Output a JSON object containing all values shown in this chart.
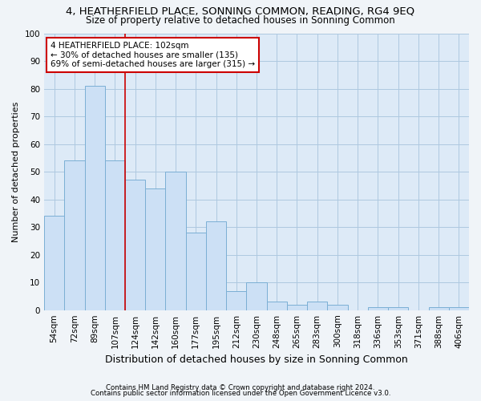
{
  "title": "4, HEATHERFIELD PLACE, SONNING COMMON, READING, RG4 9EQ",
  "subtitle": "Size of property relative to detached houses in Sonning Common",
  "xlabel": "Distribution of detached houses by size in Sonning Common",
  "ylabel": "Number of detached properties",
  "footnote1": "Contains HM Land Registry data © Crown copyright and database right 2024.",
  "footnote2": "Contains public sector information licensed under the Open Government Licence v3.0.",
  "categories": [
    "54sqm",
    "72sqm",
    "89sqm",
    "107sqm",
    "124sqm",
    "142sqm",
    "160sqm",
    "177sqm",
    "195sqm",
    "212sqm",
    "230sqm",
    "248sqm",
    "265sqm",
    "283sqm",
    "300sqm",
    "318sqm",
    "336sqm",
    "353sqm",
    "371sqm",
    "388sqm",
    "406sqm"
  ],
  "values": [
    34,
    54,
    81,
    54,
    47,
    44,
    50,
    28,
    32,
    7,
    10,
    3,
    2,
    3,
    2,
    0,
    1,
    1,
    0,
    1,
    1
  ],
  "bar_color": "#cce0f5",
  "bar_edge_color": "#7bafd4",
  "marker_line_index": 3,
  "marker_line_color": "#cc0000",
  "annotation_text": "4 HEATHERFIELD PLACE: 102sqm\n← 30% of detached houses are smaller (135)\n69% of semi-detached houses are larger (315) →",
  "annotation_box_color": "#ffffff",
  "annotation_box_edge": "#cc0000",
  "ylim": [
    0,
    100
  ],
  "grid_color": "#aec8e0",
  "background_color": "#ddeaf7",
  "fig_background": "#f0f4f8",
  "title_fontsize": 9.5,
  "subtitle_fontsize": 8.5,
  "tick_fontsize": 7.5,
  "ylabel_fontsize": 8,
  "xlabel_fontsize": 9
}
